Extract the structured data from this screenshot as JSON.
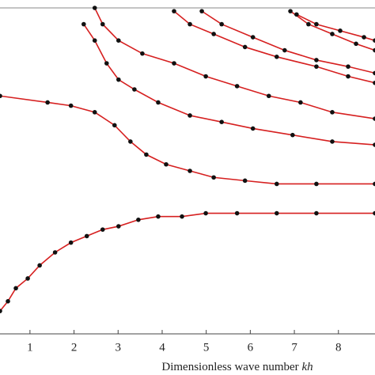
{
  "chart_data": {
    "type": "line",
    "x_label": "Dimensionless wave number",
    "x_label_symbol": "kh",
    "xlim": [
      0.32,
      8.83
    ],
    "ylim": [
      0,
      1
    ],
    "xticks": [
      1,
      2,
      3,
      4,
      5,
      6,
      7,
      8
    ],
    "line_color": "#d62020",
    "marker_color": "#111111",
    "series": [
      {
        "x": [
          0.32,
          0.5,
          0.68,
          0.95,
          1.22,
          1.57,
          1.93,
          2.29,
          2.65,
          3.01,
          3.46,
          3.91,
          4.45,
          4.99,
          5.7,
          6.6,
          7.5,
          8.83
        ],
        "values": [
          0.07,
          0.1,
          0.14,
          0.17,
          0.21,
          0.25,
          0.28,
          0.3,
          0.32,
          0.33,
          0.35,
          0.36,
          0.36,
          0.37,
          0.37,
          0.37,
          0.37,
          0.37
        ]
      },
      {
        "x": [
          0.32,
          1.4,
          1.93,
          2.47,
          2.92,
          3.28,
          3.64,
          4.09,
          4.63,
          5.17,
          5.88,
          6.6,
          7.5,
          8.83
        ],
        "values": [
          0.73,
          0.71,
          0.7,
          0.68,
          0.64,
          0.59,
          0.55,
          0.52,
          0.5,
          0.48,
          0.47,
          0.46,
          0.46,
          0.46
        ]
      },
      {
        "x": [
          2.22,
          2.47,
          2.74,
          3.01,
          3.37,
          3.91,
          4.63,
          5.35,
          6.06,
          6.96,
          7.86,
          8.83
        ],
        "values": [
          0.95,
          0.9,
          0.83,
          0.78,
          0.75,
          0.71,
          0.67,
          0.65,
          0.63,
          0.61,
          0.59,
          0.58
        ]
      },
      {
        "x": [
          2.47,
          2.65,
          3.01,
          3.55,
          4.27,
          4.99,
          5.7,
          6.42,
          7.14,
          7.86,
          8.83
        ],
        "values": [
          1.0,
          0.95,
          0.9,
          0.86,
          0.83,
          0.79,
          0.76,
          0.73,
          0.71,
          0.68,
          0.66
        ]
      },
      {
        "x": [
          4.27,
          4.63,
          5.17,
          5.88,
          6.6,
          7.5,
          8.22,
          8.83
        ],
        "values": [
          0.99,
          0.95,
          0.92,
          0.88,
          0.85,
          0.82,
          0.79,
          0.77
        ]
      },
      {
        "x": [
          4.9,
          5.35,
          6.06,
          6.78,
          7.5,
          8.22,
          8.83
        ],
        "values": [
          0.99,
          0.95,
          0.91,
          0.87,
          0.84,
          0.82,
          0.8
        ]
      },
      {
        "x": [
          6.91,
          7.32,
          7.86,
          8.4,
          8.83
        ],
        "values": [
          0.99,
          0.95,
          0.92,
          0.89,
          0.87
        ]
      },
      {
        "x": [
          7.05,
          7.5,
          8.04,
          8.58,
          8.83
        ],
        "values": [
          0.98,
          0.95,
          0.93,
          0.91,
          0.9
        ]
      }
    ]
  }
}
